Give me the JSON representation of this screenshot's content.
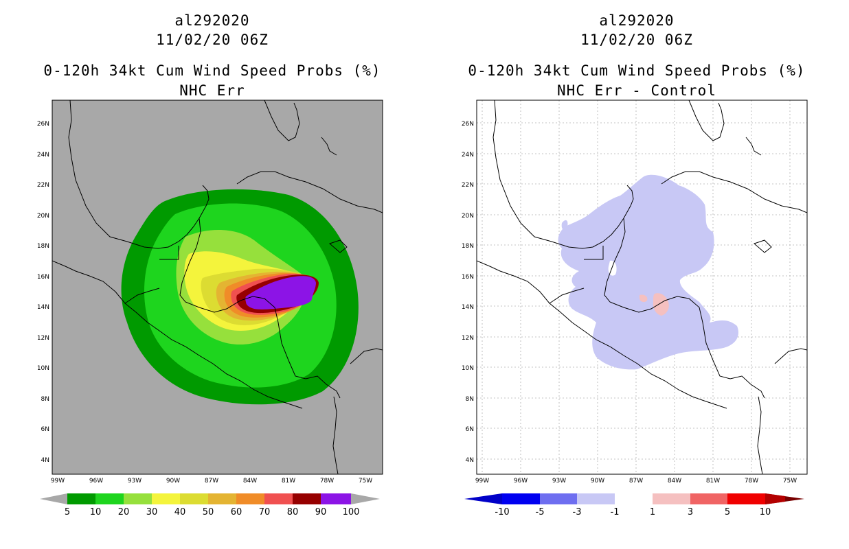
{
  "left_panel": {
    "storm_id": "al292020",
    "datetime": "11/02/20 06Z",
    "title": "0-120h 34kt Cum Wind Speed Probs (%)",
    "subtitle": "NHC Err",
    "colorbar_labels": [
      "5",
      "10",
      "20",
      "30",
      "40",
      "50",
      "60",
      "70",
      "80",
      "90",
      "100"
    ],
    "colorbar_colors": [
      "#009a00",
      "#1ed51e",
      "#96e03c",
      "#f4f43c",
      "#dcdc32",
      "#e4b432",
      "#f08c28",
      "#f05050",
      "#960000",
      "#8c14e6"
    ]
  },
  "right_panel": {
    "storm_id": "al292020",
    "datetime": "11/02/20 06Z",
    "title": "0-120h 34kt Cum Wind Speed Probs (%)",
    "subtitle": "NHC Err - Control",
    "colorbar_labels": [
      "-10",
      "-5",
      "-3",
      "-1",
      "1",
      "3",
      "5",
      "10"
    ],
    "colorbar_colors": [
      "#0000c8",
      "#0000f0",
      "#6e6ef0",
      "#c8c8f5",
      "#ffffff",
      "#f5c0c0",
      "#f06464",
      "#f00000",
      "#b40000",
      "#780000"
    ]
  },
  "axes": {
    "lon_ticks": [
      "99W",
      "96W",
      "93W",
      "90W",
      "87W",
      "84W",
      "81W",
      "78W",
      "75W"
    ],
    "lat_ticks": [
      "26N",
      "24N",
      "22N",
      "20N",
      "18N",
      "16N",
      "14N",
      "12N",
      "10N",
      "8N",
      "6N",
      "4N"
    ]
  },
  "colors": {
    "map_background_left": "#a8a8a8",
    "coast": "#000000"
  }
}
